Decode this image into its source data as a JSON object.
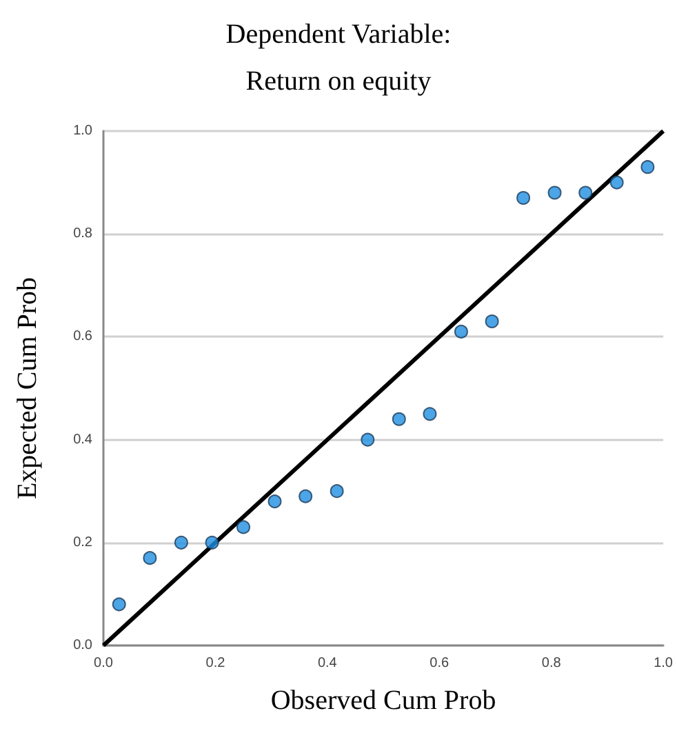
{
  "chart_data": {
    "type": "scatter",
    "title": "Dependent Variable:",
    "subtitle": "Return on equity",
    "xlabel": "Observed Cum Prob",
    "ylabel": "Expected Cum Prob",
    "series": [
      {
        "color": "#1f8fe0",
        "marker": "circle",
        "x": [
          0.028,
          0.083,
          0.139,
          0.194,
          0.25,
          0.306,
          0.361,
          0.417,
          0.472,
          0.528,
          0.583,
          0.639,
          0.694,
          0.75,
          0.806,
          0.861,
          0.917,
          0.972
        ],
        "values": [
          0.08,
          0.17,
          0.2,
          0.2,
          0.23,
          0.28,
          0.29,
          0.3,
          0.4,
          0.44,
          0.45,
          0.61,
          0.63,
          0.87,
          0.88,
          0.88,
          0.9,
          0.93
        ]
      },
      {
        "type": "line",
        "marker": "none",
        "color": "#000000",
        "x": [
          0,
          1
        ],
        "values": [
          0,
          1
        ]
      }
    ],
    "xlim": [
      0,
      1
    ],
    "ylim": [
      0,
      1
    ],
    "xticks": [
      {
        "value": 0,
        "label": "0.0"
      },
      {
        "value": 0.2,
        "label": "0.2"
      },
      {
        "value": 0.4,
        "label": "0.4"
      },
      {
        "value": 0.6,
        "label": "0.6"
      },
      {
        "value": 0.8,
        "label": "0.8"
      },
      {
        "value": 1,
        "label": "1.0"
      }
    ],
    "yticks": [
      {
        "value": 0,
        "label": "0.0"
      },
      {
        "value": 0.2,
        "label": "0.2"
      },
      {
        "value": 0.4,
        "label": "0.4"
      },
      {
        "value": 0.6,
        "label": "0.6"
      },
      {
        "value": 0.8,
        "label": "0.8"
      },
      {
        "value": 1,
        "label": "1.0"
      }
    ],
    "grid": "y"
  }
}
